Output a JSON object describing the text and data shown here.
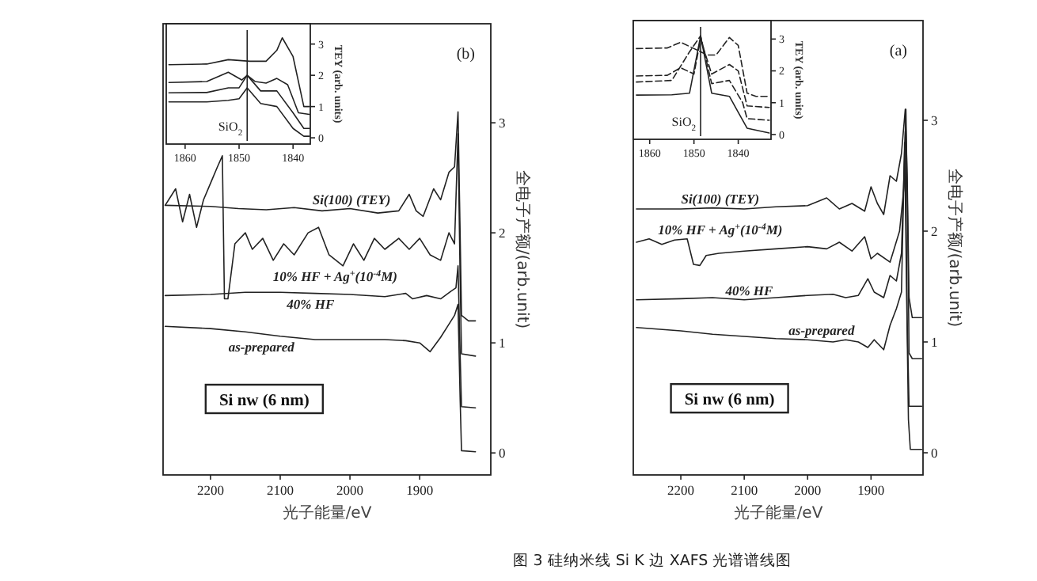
{
  "chart_data": [
    {
      "type": "line",
      "xlabel": "光子能量/eV",
      "ylabel": "全电子产额/(arb.unit)",
      "xlim": [
        2268,
        1798
      ],
      "ylim": [
        -0.2,
        3.9
      ],
      "xticks": [
        1900,
        2000,
        2100,
        2200
      ],
      "yticks": [
        0,
        1,
        2,
        3
      ],
      "annotations": [
        "(b)",
        "Si nw (6 nm)",
        "图 3  硅纳米线 Si K 边 XAFS 光谱谱线图"
      ],
      "series": [
        {
          "name": "Si(100) (TEY)",
          "color": "#222222",
          "x": [
            2265,
            2200,
            2160,
            2120,
            2080,
            2040,
            2000,
            1960,
            1930,
            1915,
            1905,
            1895,
            1880,
            1870,
            1858,
            1850,
            1845,
            1842,
            1840,
            1830,
            1820
          ],
          "values": [
            2.25,
            2.24,
            2.22,
            2.21,
            2.23,
            2.2,
            2.22,
            2.18,
            2.2,
            2.35,
            2.2,
            2.15,
            2.4,
            2.3,
            2.55,
            2.6,
            3.1,
            2.0,
            1.25,
            1.2,
            1.2
          ]
        },
        {
          "name": "10% HF + Ag$^{+}$(10$^{-4}$M)",
          "color": "#222222",
          "x": [
            2265,
            2250,
            2240,
            2230,
            2220,
            2210,
            2200,
            2190,
            2183,
            2180,
            2175,
            2165,
            2150,
            2140,
            2125,
            2110,
            2095,
            2080,
            2060,
            2045,
            2030,
            2010,
            1995,
            1980,
            1965,
            1950,
            1930,
            1915,
            1900,
            1885,
            1870,
            1858,
            1850,
            1845,
            1842,
            1840,
            1820
          ],
          "values": [
            2.25,
            2.4,
            2.1,
            2.35,
            2.05,
            2.3,
            2.45,
            2.6,
            2.7,
            1.4,
            1.4,
            1.9,
            2.0,
            1.85,
            1.95,
            1.75,
            1.9,
            1.8,
            2.0,
            2.05,
            1.8,
            1.7,
            1.9,
            1.75,
            1.95,
            1.85,
            1.95,
            1.85,
            1.95,
            1.8,
            1.75,
            2.0,
            1.9,
            2.9,
            1.6,
            0.9,
            0.88
          ]
        },
        {
          "name": "40% HF",
          "color": "#222222",
          "x": [
            2265,
            2200,
            2150,
            2100,
            2050,
            2000,
            1950,
            1920,
            1910,
            1890,
            1870,
            1855,
            1848,
            1845,
            1842,
            1840,
            1820
          ],
          "values": [
            1.43,
            1.44,
            1.46,
            1.46,
            1.45,
            1.44,
            1.42,
            1.45,
            1.4,
            1.43,
            1.4,
            1.47,
            1.5,
            1.7,
            0.9,
            0.42,
            0.41
          ]
        },
        {
          "name": "as-prepared",
          "color": "#222222",
          "x": [
            2265,
            2200,
            2150,
            2100,
            2050,
            2000,
            1950,
            1920,
            1900,
            1885,
            1870,
            1860,
            1850,
            1845,
            1842,
            1840,
            1820
          ],
          "values": [
            1.15,
            1.13,
            1.1,
            1.06,
            1.03,
            1.03,
            1.03,
            1.02,
            1.0,
            0.92,
            1.05,
            1.15,
            1.25,
            1.35,
            0.5,
            0.02,
            0.01
          ]
        }
      ]
    },
    {
      "type": "line",
      "ylabel": "TEY (arb. units)",
      "xlim": [
        1863.5,
        1836.8
      ],
      "ylim": [
        -0.2,
        3.65
      ],
      "xticks": [
        1840,
        1850,
        1860
      ],
      "yticks": [
        0,
        1,
        2,
        3
      ],
      "ref_lines": [
        {
          "axis": "x",
          "value": 1848.5,
          "label": "SiO$_{2}$"
        }
      ],
      "series": [
        {
          "color": "#222222",
          "x": [
            1863,
            1856,
            1852,
            1848,
            1845,
            1843,
            1842,
            1840,
            1838,
            1837
          ],
          "values": [
            2.34,
            2.36,
            2.5,
            2.45,
            2.45,
            2.8,
            3.2,
            2.6,
            1.0,
            1.0
          ]
        },
        {
          "color": "#222222",
          "x": [
            1863,
            1856,
            1852,
            1849.5,
            1848.5,
            1847,
            1845,
            1843,
            1841,
            1839,
            1837
          ],
          "values": [
            1.77,
            1.8,
            2.1,
            1.85,
            2.0,
            1.8,
            1.75,
            1.9,
            1.7,
            0.8,
            0.75
          ]
        },
        {
          "color": "#222222",
          "x": [
            1863,
            1856,
            1852,
            1850,
            1848.5,
            1846,
            1843,
            1840,
            1838,
            1837
          ],
          "values": [
            1.44,
            1.45,
            1.6,
            1.6,
            2.0,
            1.5,
            1.5,
            0.8,
            0.3,
            0.3
          ]
        },
        {
          "color": "#222222",
          "x": [
            1863,
            1856,
            1852,
            1850,
            1848.5,
            1846,
            1843,
            1840,
            1838,
            1837
          ],
          "values": [
            1.15,
            1.15,
            1.2,
            1.25,
            1.6,
            1.1,
            1.0,
            0.3,
            0.05,
            0.05
          ]
        }
      ]
    },
    {
      "type": "line",
      "xlabel": "光子能量/eV",
      "ylabel": "全电子产额/(arb.unit)",
      "xlim": [
        2275,
        1818
      ],
      "ylim": [
        -0.2,
        3.9
      ],
      "xticks": [
        1900,
        2000,
        2100,
        2200
      ],
      "yticks": [
        0,
        1,
        2,
        3
      ],
      "annotations": [
        "(a)",
        "Si nw (6 nm)"
      ],
      "series": [
        {
          "name": "Si(100) (TEY)",
          "color": "#222222",
          "x": [
            2270,
            2200,
            2150,
            2100,
            2050,
            2000,
            1970,
            1950,
            1930,
            1910,
            1900,
            1890,
            1880,
            1870,
            1860,
            1852,
            1846,
            1843,
            1840,
            1835,
            1820
          ],
          "values": [
            2.2,
            2.2,
            2.21,
            2.2,
            2.22,
            2.23,
            2.3,
            2.2,
            2.25,
            2.18,
            2.4,
            2.25,
            2.15,
            2.5,
            2.45,
            2.7,
            3.1,
            2.5,
            1.4,
            1.22,
            1.22
          ]
        },
        {
          "name": "10% HF + Ag$^{+}$(10$^{-4}$M)",
          "color": "#222222",
          "x": [
            2270,
            2250,
            2230,
            2210,
            2190,
            2180,
            2170,
            2160,
            2140,
            2100,
            2050,
            2000,
            1970,
            1950,
            1930,
            1910,
            1900,
            1890,
            1870,
            1855,
            1848,
            1845,
            1842,
            1840,
            1835,
            1820
          ],
          "values": [
            1.9,
            1.93,
            1.88,
            1.92,
            1.93,
            1.7,
            1.69,
            1.78,
            1.8,
            1.82,
            1.84,
            1.86,
            1.84,
            1.9,
            1.82,
            1.95,
            1.75,
            1.8,
            1.72,
            2.0,
            2.4,
            3.1,
            2.0,
            0.9,
            0.85,
            0.85
          ]
        },
        {
          "name": "40% HF",
          "color": "#222222",
          "x": [
            2270,
            2200,
            2150,
            2100,
            2050,
            2000,
            1960,
            1940,
            1920,
            1905,
            1895,
            1880,
            1870,
            1860,
            1852,
            1846,
            1843,
            1840,
            1820
          ],
          "values": [
            1.38,
            1.39,
            1.4,
            1.38,
            1.4,
            1.42,
            1.43,
            1.4,
            1.42,
            1.57,
            1.45,
            1.4,
            1.6,
            1.55,
            1.8,
            2.9,
            1.2,
            0.42,
            0.42
          ]
        },
        {
          "name": "as-prepared",
          "color": "#222222",
          "x": [
            2270,
            2200,
            2150,
            2100,
            2050,
            2000,
            1960,
            1940,
            1920,
            1905,
            1895,
            1880,
            1870,
            1860,
            1852,
            1847,
            1844,
            1841,
            1838,
            1820
          ],
          "values": [
            1.13,
            1.1,
            1.07,
            1.05,
            1.03,
            1.02,
            1.0,
            1.02,
            1.0,
            0.95,
            1.02,
            0.93,
            1.15,
            1.3,
            1.45,
            2.8,
            1.5,
            0.3,
            0.03,
            0.03
          ]
        }
      ]
    },
    {
      "type": "line",
      "ylabel": "TEY (arb. units)",
      "xlim": [
        1863.7,
        1832.6
      ],
      "ylim": [
        -0.15,
        3.58
      ],
      "xticks": [
        1840,
        1850,
        1860
      ],
      "yticks": [
        0,
        1,
        2,
        3
      ],
      "ref_lines": [
        {
          "axis": "x",
          "value": 1848.5,
          "label": "SiO$_{2}$"
        }
      ],
      "series": [
        {
          "color": "#222222",
          "line_style": "dashed",
          "x": [
            1863,
            1856,
            1853,
            1850,
            1847,
            1845,
            1842,
            1840,
            1838,
            1836,
            1833
          ],
          "values": [
            2.7,
            2.72,
            2.9,
            2.7,
            2.5,
            2.5,
            3.05,
            2.8,
            1.3,
            1.2,
            1.2
          ]
        },
        {
          "color": "#222222",
          "line_style": "dashed",
          "x": [
            1863,
            1856,
            1853,
            1850,
            1848.5,
            1846,
            1842,
            1840,
            1838,
            1833
          ],
          "values": [
            1.84,
            1.86,
            2.1,
            1.9,
            3.0,
            1.9,
            2.2,
            2.0,
            0.9,
            0.85
          ]
        },
        {
          "color": "#222222",
          "line_style": "dashed",
          "x": [
            1863,
            1855,
            1851,
            1848.5,
            1846,
            1842,
            1839,
            1838,
            1833
          ],
          "values": [
            1.65,
            1.7,
            2.6,
            3.1,
            1.6,
            1.7,
            1.0,
            0.5,
            0.45
          ]
        },
        {
          "color": "#222222",
          "line_style": "solid",
          "x": [
            1863,
            1855,
            1851,
            1848.5,
            1846,
            1842,
            1840,
            1838,
            1833
          ],
          "values": [
            1.24,
            1.25,
            1.3,
            3.1,
            1.3,
            1.2,
            0.7,
            0.2,
            0.05
          ]
        }
      ]
    }
  ]
}
